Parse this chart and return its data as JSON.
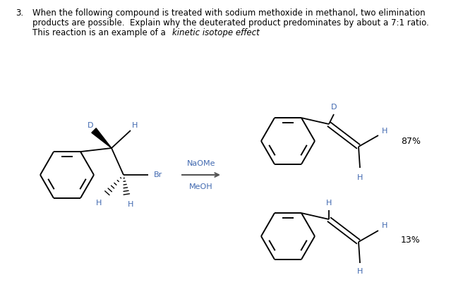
{
  "background_color": "#ffffff",
  "figsize": [
    6.56,
    4.07
  ],
  "dpi": 100,
  "text_color": "#000000",
  "line_color": "#000000",
  "question_number": "3.",
  "line1": "When the following compound is treated with sodium methoxide in methanol, two elimination",
  "line2": "products are possible.  Explain why the deuterated product predominates by about a 7:1 ratio.",
  "line3_normal": "This reaction is an example of a ",
  "line3_italic": "kinetic isotope effect",
  "line3_end": ".",
  "reagent_line1": "NaOMe",
  "reagent_line2": "MeOH",
  "percent_top": "87%",
  "percent_bot": "13%",
  "label_color": "#4169B0"
}
